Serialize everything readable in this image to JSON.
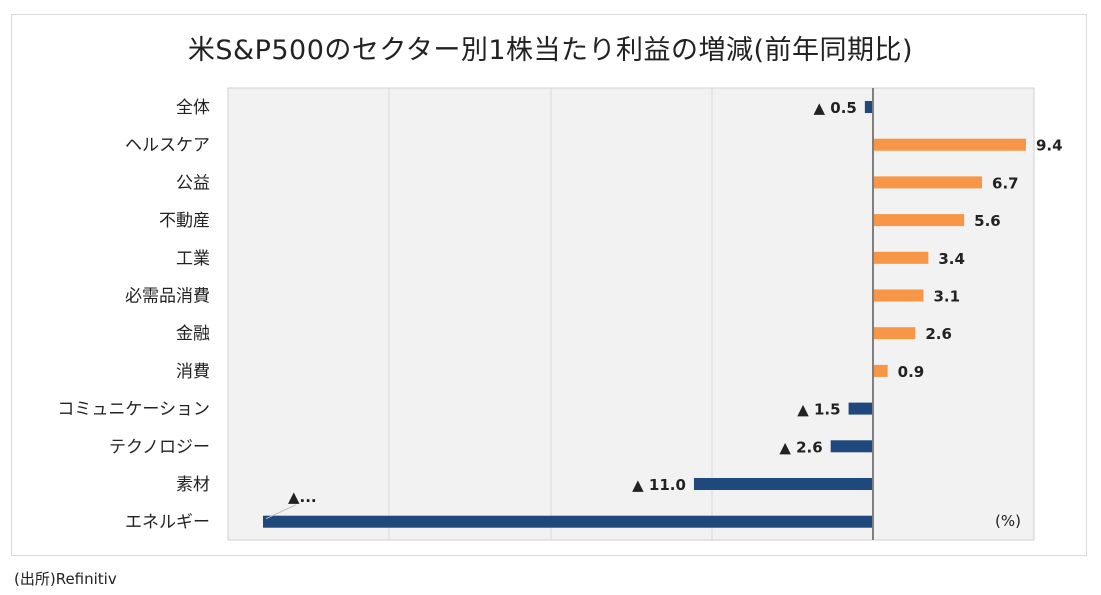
{
  "chart_data": {
    "type": "bar",
    "orientation": "horizontal",
    "title": "米S&P500のセクター別1株当たり利益の増減(前年同期比)",
    "unit_label": "(%)",
    "categories": [
      "全体",
      "ヘルスケア",
      "公益",
      "不動産",
      "工業",
      "必需品消費",
      "金融",
      "消費",
      "コミュニケーション",
      "テクノロジー",
      "素材",
      "エネルギー"
    ],
    "values": [
      -0.5,
      9.4,
      6.7,
      5.6,
      3.4,
      3.1,
      2.6,
      0.9,
      -1.5,
      -2.6,
      -11.0,
      -37.7
    ],
    "value_labels": [
      "▲ 0.5",
      "9.4",
      "6.7",
      "5.6",
      "3.4",
      "3.1",
      "2.6",
      "0.9",
      "▲ 1.5",
      "▲ 2.6",
      "▲ 11.0",
      "▲..."
    ],
    "colors": {
      "positive": "#f79646",
      "negative": "#1f497d"
    },
    "xlim": [
      -40,
      10
    ],
    "grid": true,
    "legend": "none"
  },
  "source": "(出所)Refinitiv"
}
